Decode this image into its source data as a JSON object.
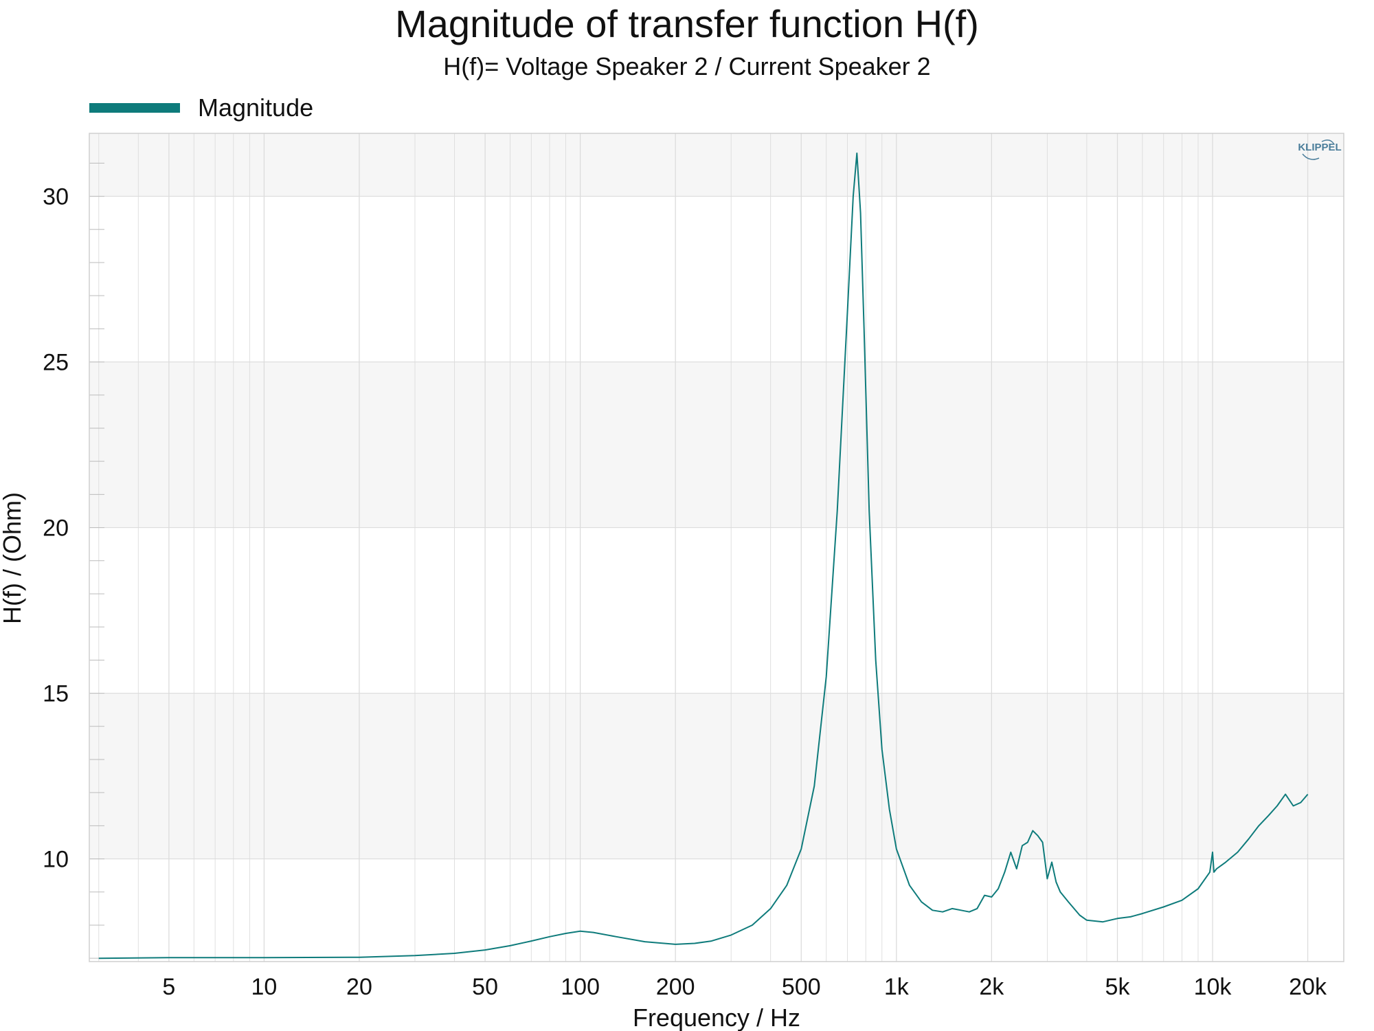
{
  "chart_data": {
    "type": "line",
    "title": "Magnitude of transfer function H(f)",
    "subtitle": "H(f)= Voltage Speaker 2 / Current Speaker 2",
    "xlabel": "Frequency / Hz",
    "ylabel": "H(f) / (Ohm)",
    "xscale": "log",
    "xlim": [
      2.8,
      26000
    ],
    "ylim": [
      6.9,
      31.9
    ],
    "xticks": [
      {
        "value": 5,
        "label": "5"
      },
      {
        "value": 10,
        "label": "10"
      },
      {
        "value": 20,
        "label": "20"
      },
      {
        "value": 50,
        "label": "50"
      },
      {
        "value": 100,
        "label": "100"
      },
      {
        "value": 200,
        "label": "200"
      },
      {
        "value": 500,
        "label": "500"
      },
      {
        "value": 1000,
        "label": "1k"
      },
      {
        "value": 2000,
        "label": "2k"
      },
      {
        "value": 5000,
        "label": "5k"
      },
      {
        "value": 10000,
        "label": "10k"
      },
      {
        "value": 20000,
        "label": "20k"
      }
    ],
    "yticks": [
      {
        "value": 10,
        "label": "10"
      },
      {
        "value": 15,
        "label": "15"
      },
      {
        "value": 20,
        "label": "20"
      },
      {
        "value": 25,
        "label": "25"
      },
      {
        "value": 30,
        "label": "30"
      }
    ],
    "grid": true,
    "legend_position": "top-left",
    "watermark": "KLIPPEL",
    "colors": {
      "series": "#0e7b7b",
      "band": "#f6f6f6",
      "grid": "#dcdcdc",
      "frame": "#cfcfcf"
    },
    "series": [
      {
        "name": "Magnitude",
        "color": "#0e7b7b",
        "x": [
          3,
          5,
          10,
          20,
          30,
          40,
          50,
          60,
          70,
          80,
          90,
          100,
          110,
          130,
          160,
          200,
          230,
          260,
          300,
          350,
          400,
          450,
          500,
          550,
          600,
          650,
          700,
          730,
          750,
          770,
          790,
          820,
          860,
          900,
          950,
          1000,
          1100,
          1200,
          1300,
          1400,
          1500,
          1600,
          1700,
          1800,
          1900,
          2000,
          2100,
          2200,
          2300,
          2400,
          2500,
          2600,
          2700,
          2800,
          2900,
          3000,
          3100,
          3200,
          3300,
          3500,
          3800,
          4000,
          4500,
          5000,
          5500,
          6000,
          7000,
          8000,
          9000,
          9800,
          10000,
          10100,
          10300,
          11000,
          12000,
          13000,
          14000,
          15000,
          16000,
          17000,
          18000,
          19000,
          20000
        ],
        "values": [
          7.0,
          7.02,
          7.02,
          7.03,
          7.08,
          7.15,
          7.25,
          7.38,
          7.52,
          7.65,
          7.75,
          7.82,
          7.78,
          7.65,
          7.5,
          7.42,
          7.45,
          7.52,
          7.7,
          8.0,
          8.5,
          9.2,
          10.3,
          12.2,
          15.5,
          20.5,
          26.5,
          30.0,
          31.3,
          29.5,
          26.0,
          20.5,
          16.0,
          13.3,
          11.5,
          10.3,
          9.2,
          8.7,
          8.45,
          8.4,
          8.5,
          8.45,
          8.4,
          8.5,
          8.9,
          8.85,
          9.1,
          9.6,
          10.2,
          9.7,
          10.4,
          10.5,
          10.85,
          10.7,
          10.5,
          9.4,
          9.9,
          9.3,
          9.0,
          8.7,
          8.3,
          8.15,
          8.1,
          8.2,
          8.25,
          8.35,
          8.55,
          8.75,
          9.1,
          9.6,
          10.2,
          9.6,
          9.7,
          9.9,
          10.2,
          10.6,
          11.0,
          11.3,
          11.6,
          11.95,
          11.6,
          11.7,
          11.95
        ]
      }
    ]
  }
}
